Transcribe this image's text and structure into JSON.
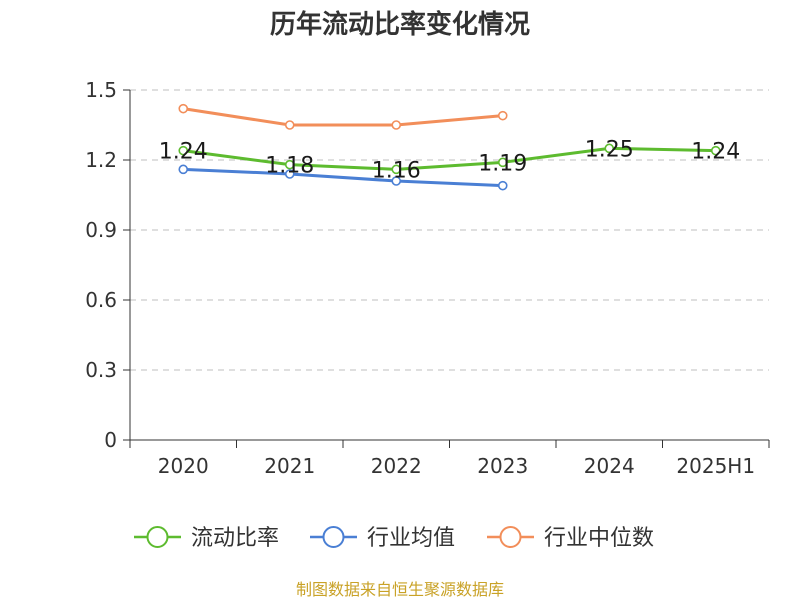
{
  "chart_data": {
    "type": "line",
    "title": "历年流动比率变化情况",
    "categories": [
      "2020",
      "2021",
      "2022",
      "2023",
      "2024",
      "2025H1"
    ],
    "ylim": [
      0,
      1.5
    ],
    "yticks": [
      0,
      0.3,
      0.6,
      0.9,
      1.2,
      1.5
    ],
    "ytick_labels": [
      "0",
      "0.3",
      "0.6",
      "0.9",
      "1.2",
      "1.5"
    ],
    "grid": true,
    "legend_position": "bottom",
    "series": [
      {
        "name": "流动比率",
        "color": "#5dbb2f",
        "values": [
          1.24,
          1.18,
          1.16,
          1.19,
          1.25,
          1.24
        ],
        "labels": [
          "1.24",
          "1.18",
          "1.16",
          "1.19",
          "1.25",
          "1.24"
        ]
      },
      {
        "name": "行业均值",
        "color": "#4a7fd4",
        "values": [
          1.16,
          1.14,
          1.11,
          1.09,
          null,
          null
        ]
      },
      {
        "name": "行业中位数",
        "color": "#f28e5a",
        "values": [
          1.42,
          1.35,
          1.35,
          1.39,
          null,
          null
        ]
      }
    ],
    "source": "制图数据来自恒生聚源数据库"
  }
}
